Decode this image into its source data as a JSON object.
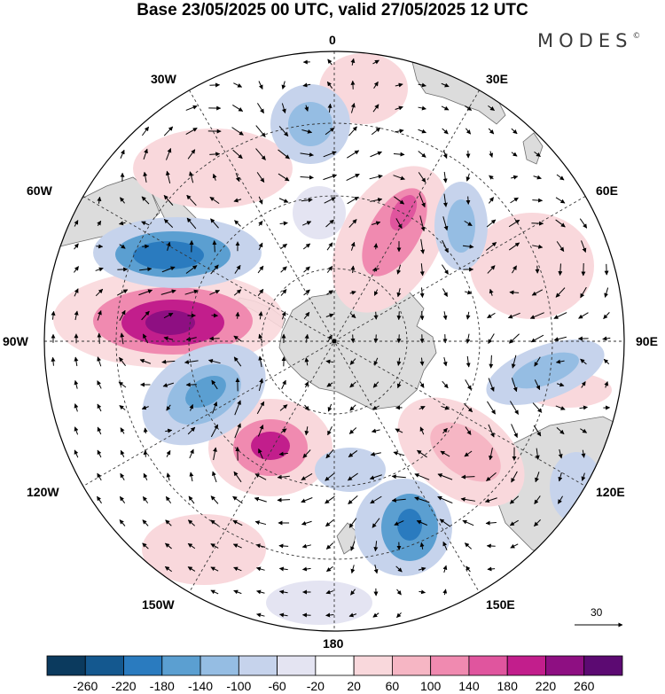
{
  "title": "Base 23/05/2025 00 UTC, valid 27/05/2025 12 UTC",
  "brand": "MODES",
  "brand_mark": "©",
  "longitude_labels": {
    "lon_0": "0",
    "lon_30e": "30E",
    "lon_60e": "60E",
    "lon_90e": "90E",
    "lon_120e": "120E",
    "lon_150e": "150E",
    "lon_180": "180",
    "lon_150w": "150W",
    "lon_120w": "120W",
    "lon_90w": "90W",
    "lon_60w": "60W",
    "lon_30w": "30W"
  },
  "vector_scale": "30",
  "colorbar": {
    "colors": [
      "#0b3a5e",
      "#14588f",
      "#2a7bbf",
      "#5b9fd1",
      "#95bde3",
      "#c6d3ec",
      "#e4e4f2",
      "#ffffff",
      "#f9d8dc",
      "#f6b6c4",
      "#f08ab0",
      "#e0559e",
      "#c21e8c",
      "#8e0f82",
      "#5c0a72"
    ],
    "ticks": [
      "-260",
      "-220",
      "-180",
      "-140",
      "-100",
      "-60",
      "-20",
      "20",
      "60",
      "100",
      "140",
      "180",
      "220",
      "260"
    ]
  },
  "map_colors": {
    "ocean": "#ffffff",
    "land": "#dcdcdc",
    "coast": "#6e6e6e"
  }
}
